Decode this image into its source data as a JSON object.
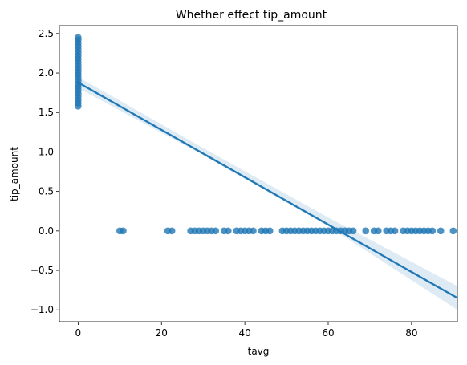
{
  "chart_data": {
    "type": "scatter",
    "title": "Whether effect tip_amount",
    "xlabel": "tavg",
    "ylabel": "tip_amount",
    "xlim": [
      -4.5,
      91
    ],
    "ylim": [
      -1.15,
      2.6
    ],
    "xticks": [
      0,
      20,
      40,
      60,
      80
    ],
    "xtick_labels": [
      "0",
      "20",
      "40",
      "60",
      "80"
    ],
    "yticks": [
      -1.0,
      -0.5,
      0.0,
      0.5,
      1.0,
      1.5,
      2.0,
      2.5
    ],
    "ytick_labels": [
      "−1.0",
      "−0.5",
      "0.0",
      "0.5",
      "1.0",
      "1.5",
      "2.0",
      "2.5"
    ],
    "grid": false,
    "legend": false,
    "colors": {
      "points": "#1f77b4",
      "line": "#1f77b4",
      "band": "#1f77b4"
    },
    "series": [
      {
        "kind": "points",
        "points": [
          {
            "x": 0,
            "y": 1.58
          },
          {
            "x": 0,
            "y": 1.62
          },
          {
            "x": 0,
            "y": 1.66
          },
          {
            "x": 0,
            "y": 1.7
          },
          {
            "x": 0,
            "y": 1.74
          },
          {
            "x": 0,
            "y": 1.78
          },
          {
            "x": 0,
            "y": 1.82
          },
          {
            "x": 0,
            "y": 1.86
          },
          {
            "x": 0,
            "y": 1.9
          },
          {
            "x": 0,
            "y": 1.94
          },
          {
            "x": 0,
            "y": 1.98
          },
          {
            "x": 0,
            "y": 2.02
          },
          {
            "x": 0,
            "y": 2.06
          },
          {
            "x": 0,
            "y": 2.1
          },
          {
            "x": 0,
            "y": 2.14
          },
          {
            "x": 0,
            "y": 2.18
          },
          {
            "x": 0,
            "y": 2.22
          },
          {
            "x": 0,
            "y": 2.26
          },
          {
            "x": 0,
            "y": 2.3
          },
          {
            "x": 0,
            "y": 2.34
          },
          {
            "x": 0,
            "y": 2.38
          },
          {
            "x": 0,
            "y": 2.42
          },
          {
            "x": 0,
            "y": 2.45
          },
          {
            "x": 10,
            "y": 0
          },
          {
            "x": 10.8,
            "y": 0
          },
          {
            "x": 21.5,
            "y": 0
          },
          {
            "x": 22.5,
            "y": 0
          },
          {
            "x": 27,
            "y": 0
          },
          {
            "x": 28,
            "y": 0
          },
          {
            "x": 29,
            "y": 0
          },
          {
            "x": 30,
            "y": 0
          },
          {
            "x": 31,
            "y": 0
          },
          {
            "x": 32,
            "y": 0
          },
          {
            "x": 33,
            "y": 0
          },
          {
            "x": 35,
            "y": 0
          },
          {
            "x": 36,
            "y": 0
          },
          {
            "x": 38,
            "y": 0
          },
          {
            "x": 39,
            "y": 0
          },
          {
            "x": 40,
            "y": 0
          },
          {
            "x": 41,
            "y": 0
          },
          {
            "x": 42,
            "y": 0
          },
          {
            "x": 44,
            "y": 0
          },
          {
            "x": 45,
            "y": 0
          },
          {
            "x": 46,
            "y": 0
          },
          {
            "x": 49,
            "y": 0
          },
          {
            "x": 50,
            "y": 0
          },
          {
            "x": 51,
            "y": 0
          },
          {
            "x": 52,
            "y": 0
          },
          {
            "x": 53,
            "y": 0
          },
          {
            "x": 54,
            "y": 0
          },
          {
            "x": 55,
            "y": 0
          },
          {
            "x": 56,
            "y": 0
          },
          {
            "x": 57,
            "y": 0
          },
          {
            "x": 58,
            "y": 0
          },
          {
            "x": 59,
            "y": 0
          },
          {
            "x": 60,
            "y": 0
          },
          {
            "x": 61,
            "y": 0
          },
          {
            "x": 62,
            "y": 0
          },
          {
            "x": 63,
            "y": 0
          },
          {
            "x": 64,
            "y": 0
          },
          {
            "x": 65,
            "y": 0
          },
          {
            "x": 66,
            "y": 0
          },
          {
            "x": 69,
            "y": 0
          },
          {
            "x": 71,
            "y": 0
          },
          {
            "x": 72,
            "y": 0
          },
          {
            "x": 74,
            "y": 0
          },
          {
            "x": 75,
            "y": 0
          },
          {
            "x": 76,
            "y": 0
          },
          {
            "x": 78,
            "y": 0
          },
          {
            "x": 79,
            "y": 0
          },
          {
            "x": 80,
            "y": 0
          },
          {
            "x": 81,
            "y": 0
          },
          {
            "x": 82,
            "y": 0
          },
          {
            "x": 83,
            "y": 0
          },
          {
            "x": 84,
            "y": 0
          },
          {
            "x": 85,
            "y": 0
          },
          {
            "x": 87,
            "y": 0
          },
          {
            "x": 90,
            "y": 0
          }
        ]
      },
      {
        "kind": "regression-line",
        "x": [
          0,
          91
        ],
        "y": [
          1.88,
          -0.85
        ]
      },
      {
        "kind": "confidence-band",
        "x": [
          0,
          30,
          60,
          91
        ],
        "upper": [
          1.95,
          1.05,
          0.17,
          -0.7
        ],
        "lower": [
          1.81,
          0.96,
          0.06,
          -1.0
        ]
      }
    ]
  }
}
